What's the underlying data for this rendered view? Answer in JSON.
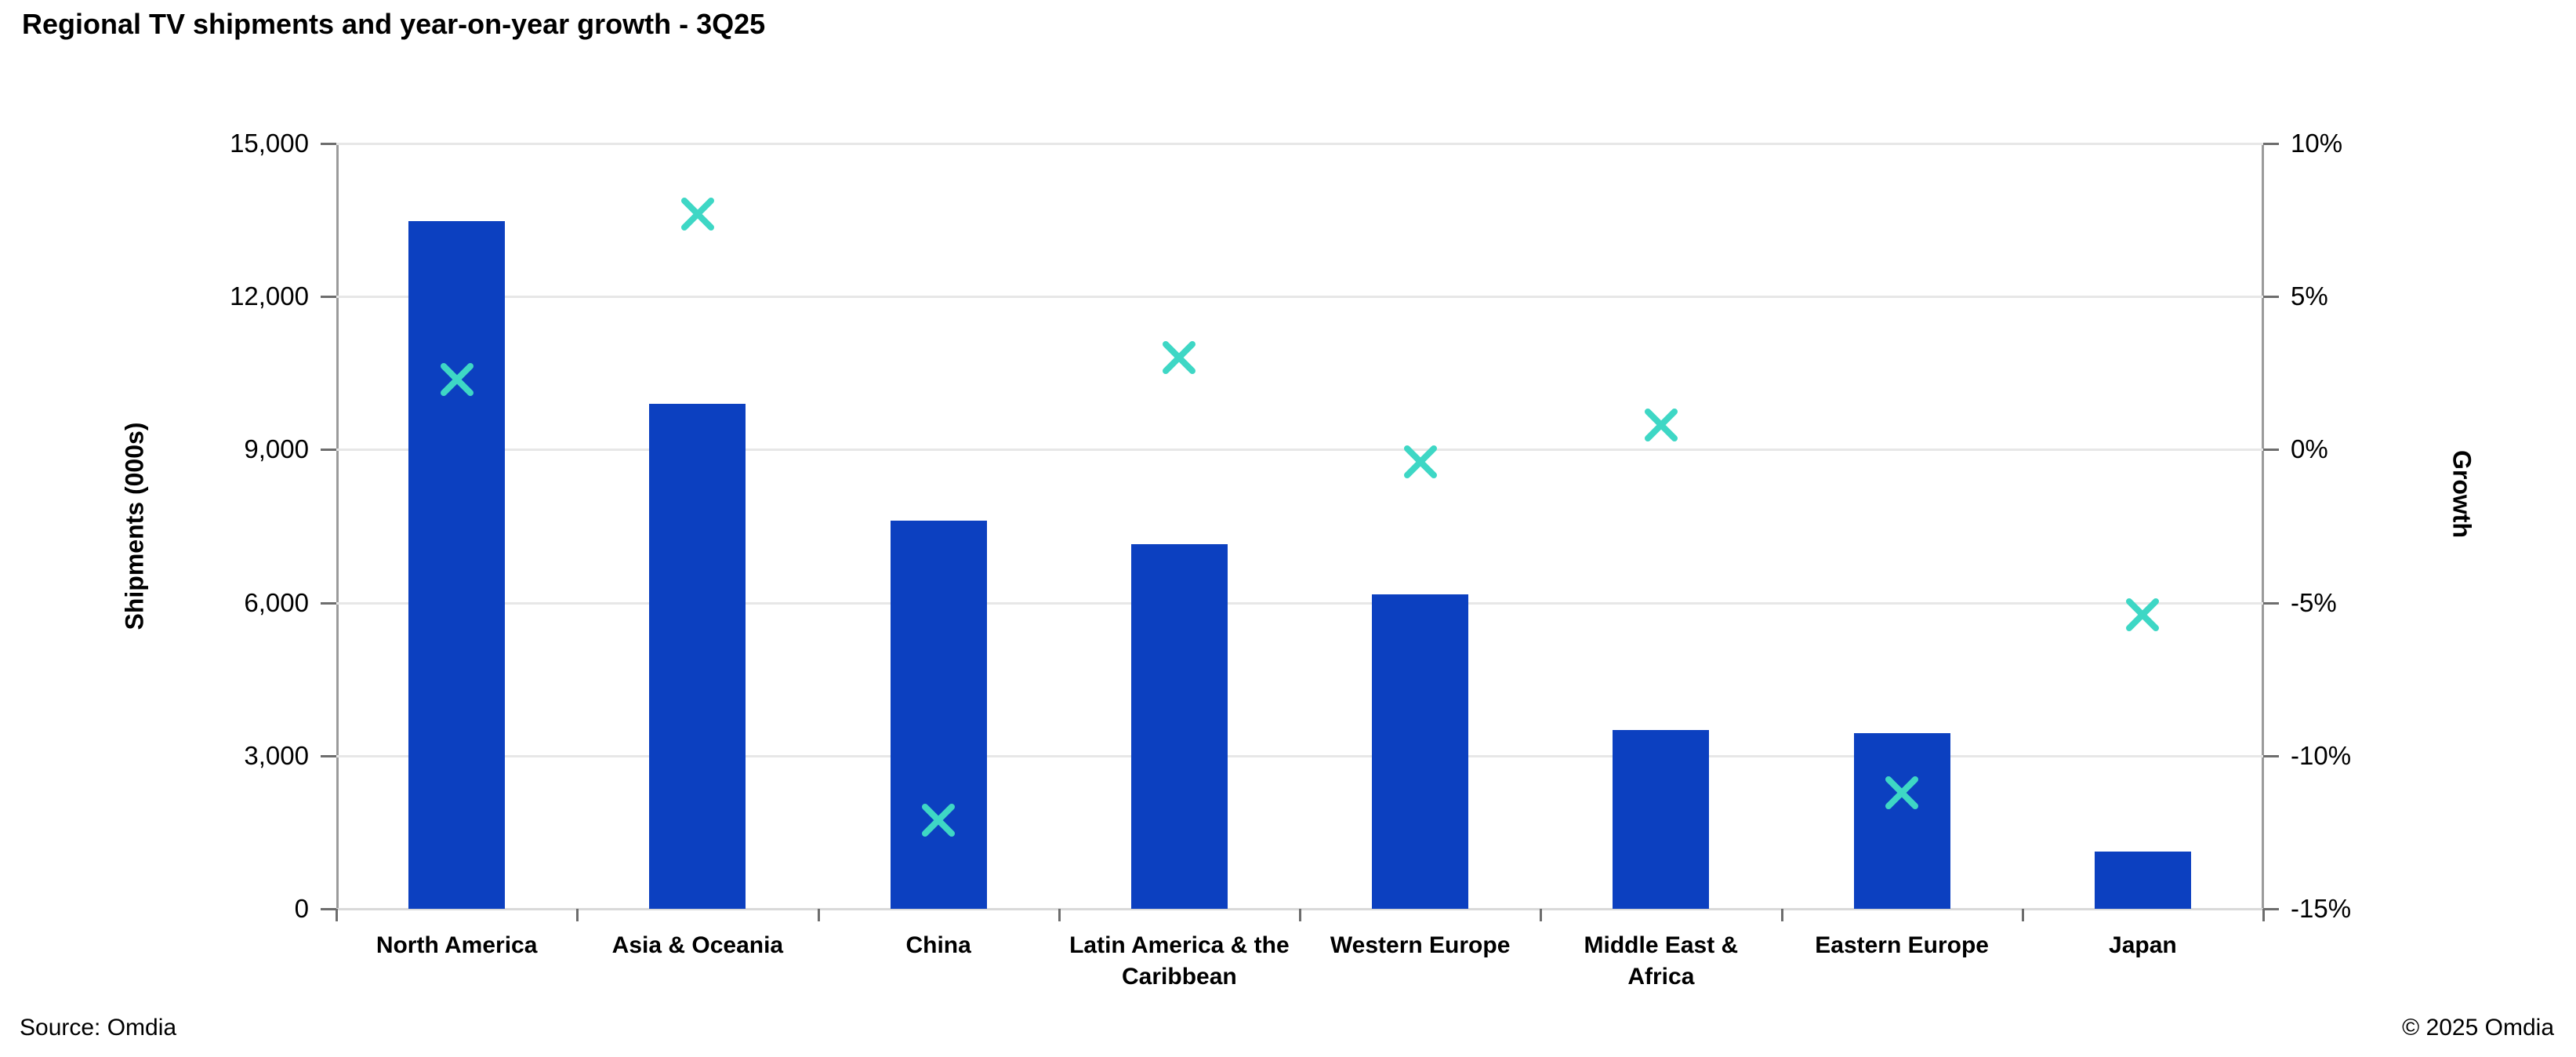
{
  "title": "Regional TV shipments and year-on-year growth - 3Q25",
  "footer": {
    "source": "Source: Omdia",
    "copyright": "© 2025 Omdia"
  },
  "colors": {
    "bar_blue": "#0c40c0",
    "marker_teal": "#3ed7c5",
    "gridline": "#e7e7e7",
    "axis_line": "#9b9b9b",
    "tick": "#6d6d6d",
    "text": "#000000"
  },
  "chart_data": {
    "type": "combo",
    "title": "Regional TV shipments and year-on-year growth - 3Q25",
    "categories": [
      "North America",
      "Asia & Oceania",
      "China",
      "Latin America & the Caribbean",
      "Western Europe",
      "Middle East & Africa",
      "Eastern Europe",
      "Japan"
    ],
    "category_lines": [
      [
        "North America"
      ],
      [
        "Asia & Oceania"
      ],
      [
        "China"
      ],
      [
        "Latin America & the",
        "Caribbean"
      ],
      [
        "Western Europe"
      ],
      [
        "Middle East &",
        "Africa"
      ],
      [
        "Eastern Europe"
      ],
      [
        "Japan"
      ]
    ],
    "series": [
      {
        "name": "Shipments (000s)",
        "type": "bar",
        "axis": "left",
        "values": [
          13480,
          9900,
          7600,
          7150,
          6160,
          3500,
          3450,
          1120
        ]
      },
      {
        "name": "Growth",
        "type": "scatter-x-marker",
        "axis": "right",
        "values": [
          2.3,
          7.7,
          -12.1,
          3.0,
          -0.4,
          0.8,
          -11.2,
          -5.4
        ]
      }
    ],
    "left_axis": {
      "label": "Shipments (000s)",
      "min": 0,
      "max": 15000,
      "tick_step": 3000,
      "tick_labels": [
        "0",
        "3,000",
        "6,000",
        "9,000",
        "12,000",
        "15,000"
      ]
    },
    "right_axis": {
      "label": "Growth",
      "min": -15,
      "max": 10,
      "tick_step": 5,
      "tick_labels": [
        "-15%",
        "-10%",
        "-5%",
        "0%",
        "5%",
        "10%"
      ]
    },
    "grid": true,
    "legend_position": "none"
  }
}
